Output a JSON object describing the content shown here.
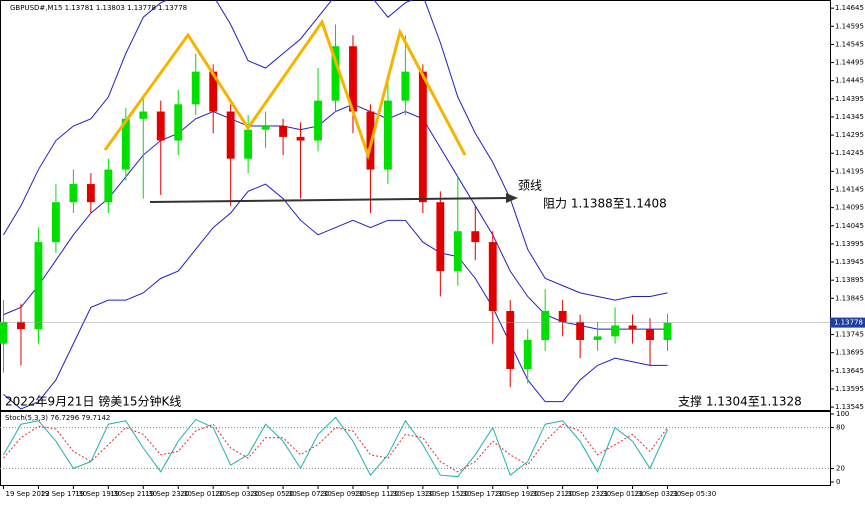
{
  "header": {
    "symbol_info": "GBPUSD#,M15 1.13781 1.13803 1.13778 1.13778"
  },
  "annotations": {
    "neckline": "颈线",
    "resistance": "阻力 1.1388至1.1408",
    "caption": "2022年9月21日 镑美15分钟K线",
    "support": "支撑 1.1304至1.1328"
  },
  "chart_data": [
    {
      "type": "candlestick",
      "x": [
        0,
        1,
        2,
        3,
        4,
        5,
        6,
        7,
        8,
        9,
        10,
        11,
        12,
        13,
        14,
        15,
        16,
        17,
        18,
        19,
        20,
        21,
        22,
        23,
        24,
        25,
        26,
        27,
        28,
        29,
        30,
        31,
        32,
        33,
        34,
        35,
        36,
        37,
        38
      ],
      "open": [
        1.1372,
        1.1378,
        1.1376,
        1.14,
        1.1411,
        1.1416,
        1.1411,
        1.142,
        1.1434,
        1.1436,
        1.1428,
        1.1438,
        1.1447,
        1.1436,
        1.1423,
        1.1431,
        1.1432,
        1.1429,
        1.1428,
        1.1439,
        1.1454,
        1.1436,
        1.142,
        1.1439,
        1.1447,
        1.1411,
        1.1392,
        1.1403,
        1.14,
        1.1381,
        1.1365,
        1.1373,
        1.1381,
        1.1378,
        1.1373,
        1.1374,
        1.1377,
        1.1376,
        1.1373
      ],
      "high": [
        1.1384,
        1.1383,
        1.1404,
        1.1416,
        1.142,
        1.1419,
        1.1423,
        1.1437,
        1.144,
        1.1439,
        1.1442,
        1.1452,
        1.1449,
        1.1438,
        1.1435,
        1.1436,
        1.1434,
        1.1433,
        1.1448,
        1.146,
        1.1457,
        1.1438,
        1.1444,
        1.1457,
        1.1449,
        1.1414,
        1.1418,
        1.141,
        1.1403,
        1.1384,
        1.1376,
        1.1387,
        1.1384,
        1.138,
        1.1378,
        1.1382,
        1.138,
        1.1379,
        1.13803
      ],
      "low": [
        1.1364,
        1.1366,
        1.1372,
        1.1397,
        1.1408,
        1.1408,
        1.1408,
        1.1417,
        1.1412,
        1.1413,
        1.1424,
        1.1435,
        1.143,
        1.141,
        1.1419,
        1.1426,
        1.1424,
        1.1412,
        1.1425,
        1.1436,
        1.143,
        1.1408,
        1.1416,
        1.1435,
        1.1408,
        1.1385,
        1.1388,
        1.1395,
        1.1372,
        1.136,
        1.1361,
        1.137,
        1.1374,
        1.1368,
        1.137,
        1.1372,
        1.1372,
        1.1366,
        1.137
      ],
      "close": [
        1.1378,
        1.1376,
        1.14,
        1.1411,
        1.1416,
        1.1411,
        1.142,
        1.1434,
        1.1436,
        1.1428,
        1.1438,
        1.1447,
        1.1436,
        1.1423,
        1.1431,
        1.1432,
        1.1429,
        1.1428,
        1.1439,
        1.1454,
        1.1436,
        1.142,
        1.1439,
        1.1447,
        1.1411,
        1.1392,
        1.1403,
        1.14,
        1.1381,
        1.1365,
        1.1373,
        1.1381,
        1.1378,
        1.1373,
        1.1374,
        1.1377,
        1.1376,
        1.1373,
        1.13778
      ],
      "up_color": "#00e000",
      "down_color": "#e00000",
      "series": [
        {
          "name": "Bands upper",
          "color": "#2020c0",
          "values": [
            1.1402,
            1.141,
            1.142,
            1.1428,
            1.1432,
            1.1434,
            1.144,
            1.1452,
            1.1462,
            1.1466,
            1.1468,
            1.147,
            1.1468,
            1.146,
            1.145,
            1.1448,
            1.1452,
            1.1456,
            1.1462,
            1.1468,
            1.147,
            1.1468,
            1.1462,
            1.1466,
            1.1468,
            1.1455,
            1.144,
            1.143,
            1.1422,
            1.1412,
            1.1398,
            1.139,
            1.1388,
            1.1386,
            1.1385,
            1.1384,
            1.1385,
            1.1385,
            1.1386
          ]
        },
        {
          "name": "Bands middle",
          "color": "#2020c0",
          "values": [
            1.138,
            1.1382,
            1.1388,
            1.1395,
            1.1402,
            1.1408,
            1.1412,
            1.1418,
            1.1424,
            1.1428,
            1.143,
            1.1434,
            1.1436,
            1.1434,
            1.1432,
            1.1432,
            1.1432,
            1.1431,
            1.1432,
            1.1436,
            1.1438,
            1.1436,
            1.1434,
            1.1436,
            1.1434,
            1.1426,
            1.1418,
            1.141,
            1.1402,
            1.1392,
            1.1385,
            1.138,
            1.1378,
            1.1377,
            1.1376,
            1.1376,
            1.1376,
            1.1376,
            1.1376
          ]
        },
        {
          "name": "Bands lower",
          "color": "#2020c0",
          "values": [
            1.1358,
            1.1354,
            1.1356,
            1.1362,
            1.1372,
            1.1382,
            1.1384,
            1.1384,
            1.1386,
            1.139,
            1.1392,
            1.1398,
            1.1404,
            1.1408,
            1.1414,
            1.1416,
            1.1412,
            1.1406,
            1.1402,
            1.1404,
            1.1406,
            1.1404,
            1.1406,
            1.1406,
            1.14,
            1.1397,
            1.1396,
            1.139,
            1.1382,
            1.1372,
            1.1362,
            1.1356,
            1.1356,
            1.1362,
            1.1366,
            1.1368,
            1.1367,
            1.1366,
            1.1366
          ]
        }
      ],
      "last_price": 1.13778,
      "last_price_color": "#1f3fa0",
      "xlim": [
        -0.2,
        47.3
      ],
      "ylim": [
        1.13537,
        1.14662
      ],
      "yticks": [
        1.13545,
        1.13595,
        1.13645,
        1.13695,
        1.13745,
        1.13845,
        1.13895,
        1.13945,
        1.13995,
        1.14045,
        1.14095,
        1.14145,
        1.14195,
        1.14245,
        1.14295,
        1.14345,
        1.14395,
        1.14445,
        1.14495,
        1.14545,
        1.14595,
        1.14645
      ],
      "xticks": [
        {
          "value": 0,
          "label": "19 Sep 2022"
        },
        {
          "value": 2,
          "label": "19 Sep 17:30"
        },
        {
          "value": 4,
          "label": "19 Sep 19:30"
        },
        {
          "value": 6,
          "label": "19 Sep 21:30"
        },
        {
          "value": 8,
          "label": "19 Sep 23:30"
        },
        {
          "value": 10,
          "label": "20 Sep 01:30"
        },
        {
          "value": 12,
          "label": "20 Sep 03:30"
        },
        {
          "value": 14,
          "label": "20 Sep 05:30"
        },
        {
          "value": 16,
          "label": "20 Sep 07:30"
        },
        {
          "value": 18,
          "label": "20 Sep 09:30"
        },
        {
          "value": 20,
          "label": "20 Sep 11:30"
        },
        {
          "value": 22,
          "label": "20 Sep 13:30"
        },
        {
          "value": 24,
          "label": "20 Sep 15:30"
        },
        {
          "value": 26,
          "label": "20 Sep 17:30"
        },
        {
          "value": 28,
          "label": "20 Sep 19:30"
        },
        {
          "value": 30,
          "label": "20 Sep 21:30"
        },
        {
          "value": 32,
          "label": "20 Sep 23:30"
        },
        {
          "value": 34,
          "label": "21 Sep 01:30"
        },
        {
          "value": 36,
          "label": "21 Sep 03:30"
        },
        {
          "value": 38,
          "label": "21 Sep 05:30"
        }
      ]
    },
    {
      "type": "line",
      "title": "Stoch(5,3,3) 76.7296 79.7142",
      "x": [
        0,
        1,
        2,
        3,
        4,
        5,
        6,
        7,
        8,
        9,
        10,
        11,
        12,
        13,
        14,
        15,
        16,
        17,
        18,
        19,
        20,
        21,
        22,
        23,
        24,
        25,
        26,
        27,
        28,
        29,
        30,
        31,
        32,
        33,
        34,
        35,
        36,
        37,
        38
      ],
      "series": [
        {
          "name": "Main",
          "color": "#20b2aa",
          "dashed": false,
          "values": [
            40,
            85,
            90,
            60,
            20,
            30,
            85,
            90,
            50,
            15,
            60,
            92,
            80,
            25,
            40,
            85,
            60,
            20,
            70,
            95,
            60,
            10,
            40,
            90,
            55,
            10,
            8,
            40,
            80,
            10,
            30,
            85,
            90,
            60,
            15,
            80,
            60,
            20,
            77
          ]
        },
        {
          "name": "Signal",
          "color": "#e03030",
          "dashed": true,
          "values": [
            35,
            65,
            82,
            78,
            45,
            30,
            55,
            80,
            70,
            40,
            45,
            75,
            85,
            50,
            35,
            65,
            65,
            40,
            55,
            80,
            75,
            40,
            35,
            70,
            65,
            30,
            15,
            30,
            60,
            40,
            25,
            60,
            85,
            75,
            40,
            55,
            70,
            45,
            80
          ]
        }
      ],
      "xlim": [
        -0.2,
        47.3
      ],
      "ylim": [
        0,
        100
      ],
      "yticks": [
        0,
        20,
        80,
        100
      ],
      "dotted_levels": [
        20,
        80
      ]
    }
  ]
}
